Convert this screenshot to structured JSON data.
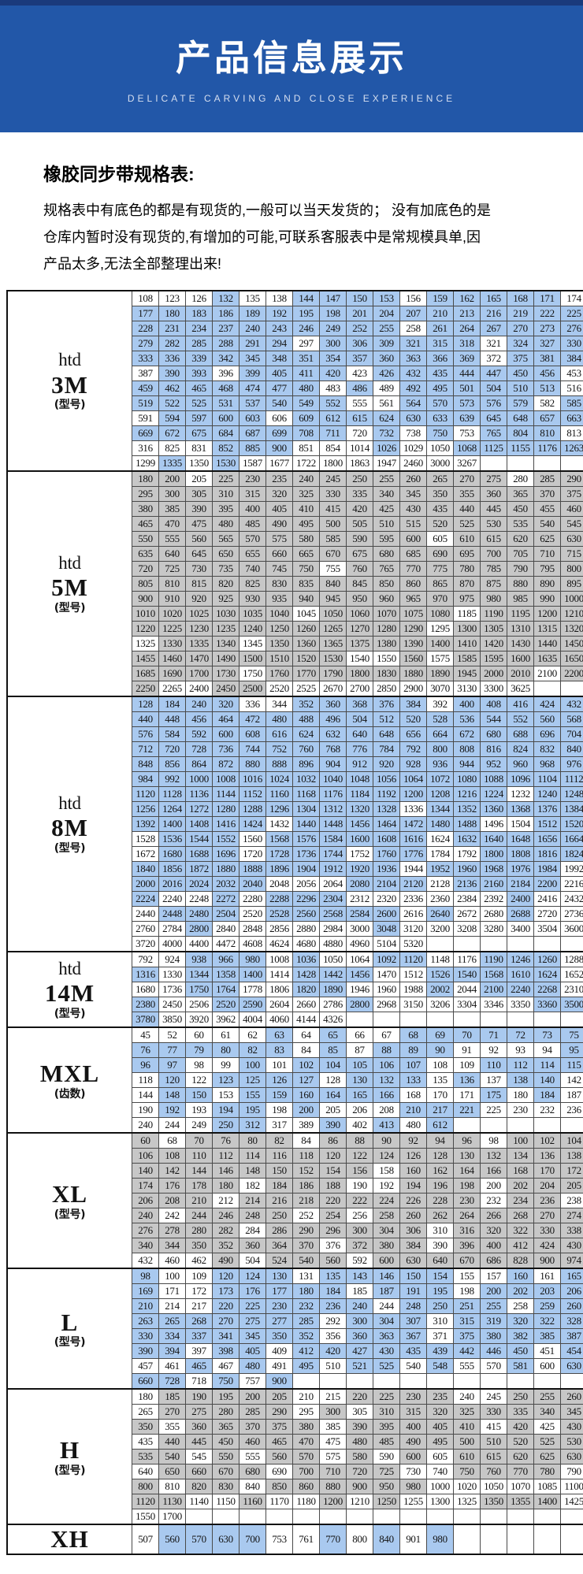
{
  "banner": {
    "title": "产品信息展示",
    "subtitle": "DELICATE CARVING AND CLOSE EXPERIENCE"
  },
  "intro": {
    "heading": "橡胶同步带规格表:",
    "lines": [
      "规格表中有底色的都是有现货的,一般可以当天发货的； 没有加底色的是",
      "仓库内暂时没有现货的,有增加的可能,可联系客服表中是常规模具单,因",
      "产品太多,无法全部整理出来!"
    ]
  },
  "colors": {
    "banner_blue": "#2257a8",
    "top_strip": "#1a3a7c",
    "highlight_blue": "#a9c9ef",
    "highlight_gray": "#c7c7c7"
  },
  "table": {
    "columns": 17,
    "sections": [
      {
        "id": "htd-3m",
        "label": [
          "htd",
          "3M",
          "(型号)"
        ],
        "hl": "highlight_blue",
        "rows": [
          "108 123 126 132* 135 138 144* 147* 150* 153* 156 159* 162* 165* 168* 171* 174",
          "177* 180* 183* 186* 189* 192* 195* 198* 201* 204* 207* 210* 213* 216* 219* 222* 225*",
          "228* 231* 234* 237* 240* 243* 246* 249* 252* 255* 258 261* 264* 267* 270* 273* 276*",
          "279* 282* 285* 288* 291* 294* 297 300* 306* 309* 321* 315* 318* 321 324* 327* 330*",
          "333* 336* 339* 342* 345* 348* 351* 354* 357* 360* 363* 366* 369* 372 375* 381* 384*",
          "387 390* 393* 396 399* 405* 411* 420* 423 426* 432* 435* 444* 447* 450* 456* 453",
          "459* 462* 465* 468* 474* 477* 480* 483 486* 489 492* 495* 501* 504* 510* 513* 516",
          "519* 522* 525* 531* 537* 540* 549* 552* 555 561 564* 570* 573* 576* 579* 582 585*",
          "591 594* 597* 600* 603* 606 609* 612* 615* 624* 630* 633* 639* 645* 648* 657* 663*",
          "669* 672* 675* 684* 687* 699* 708* 711* 720 732* 738 750* 753 765* 804* 810* 813",
          "316 825 831 852* 885* 900* 851 854 1014 1026* 1029 1050 1068* 1125* 1155* 1176* 1263*",
          "1299 1335* 1350 1530* 1587 1677 1722 1800 1863 1947 2460 3000 3267"
        ]
      },
      {
        "id": "htd-5m",
        "label": [
          "htd",
          "5M",
          "(型号)"
        ],
        "hl": "highlight_gray",
        "rows": [
          "180* 200* 205 225* 230* 235* 240* 245* 250* 255* 260* 265* 270* 275* 280 285* 290*",
          "295* 300* 305* 310* 315* 320* 325* 330* 335* 340* 345* 350* 355* 360* 365* 370* 375*",
          "380* 385* 390* 395* 400* 405* 410* 415* 420* 425* 430* 435* 440* 445* 450* 455* 460*",
          "465* 470* 475* 480* 485* 490* 495* 500* 505* 510* 515* 520* 525* 530* 535* 540* 545*",
          "550* 555* 560* 565* 570* 575* 580* 585* 590* 595* 600* 605 610* 615* 620* 625* 630*",
          "635* 640* 645* 650* 655* 660* 665* 670* 675* 680* 685* 690* 695* 700* 705* 710* 715*",
          "720* 725* 730* 735* 740* 745* 750* 755 760* 765* 770* 775* 780* 785* 790* 795* 800*",
          "805* 810* 815* 820* 825* 830* 835* 840* 845* 850* 860* 865* 870* 875* 880* 890* 895*",
          "900* 910* 920* 925* 930* 935* 940* 945* 950* 960* 965* 970* 975* 980* 985* 990* 1000*",
          "1010* 1020* 1025* 1030* 1035* 1040* 1045 1050* 1060* 1070* 1075* 1080* 1185 1190* 1195* 1200* 1210*",
          "1220* 1225* 1230* 1235* 1240* 1250* 1260* 1265* 1270* 1280* 1290* 1295 1300* 1305* 1310* 1315* 1320*",
          "1325 1330* 1335* 1340* 1345 1350* 1360* 1365* 1375* 1380* 1390* 1400* 1410* 1420* 1430* 1440* 1450*",
          "1455* 1460* 1470* 1490* 1500* 1510* 1520* 1530* 1540 1550 1560* 1575 1585* 1595* 1600* 1635* 1650*",
          "1685* 1690* 1700* 1730* 1750 1760* 1770* 1790* 1800* 1830* 1880* 1890* 1945* 2000* 2010* 2100 2200*",
          "2250* 2265 2400 2450* 2500* 2520 2525 2670 2700 2850 2900 3070 3130 3300 3625"
        ]
      },
      {
        "id": "htd-8m",
        "label": [
          "htd",
          "8M",
          "(型号)"
        ],
        "hl": "highlight_blue",
        "rows": [
          "128* 184* 240* 320* 336 344 352* 360* 368* 376* 384* 392 400* 408* 416* 424* 432*",
          "440* 448* 456* 464* 472* 480* 488* 496* 504* 512* 520* 528* 536* 544* 552* 560* 568*",
          "576* 584* 592* 600* 608* 616* 624* 632* 640* 648* 656* 664* 672* 680* 688* 696* 704*",
          "712* 720* 728* 736* 744* 752* 760* 768* 776* 784* 792* 800* 808* 816* 824* 832* 840*",
          "848* 856* 864* 872* 880* 888* 896* 904* 912* 920* 928* 936* 944* 952* 960* 968* 976*",
          "984* 992* 1000* 1008* 1016* 1024* 1032* 1040* 1048* 1056* 1064* 1072* 1080* 1088* 1096* 1104* 1112*",
          "1120* 1128* 1136* 1144* 1152* 1160* 1168* 1176* 1184* 1192* 1200* 1208* 1216* 1224* 1232 1240* 1248*",
          "1256* 1264* 1272* 1280* 1288* 1296* 1304* 1312* 1320* 1328* 1336 1344* 1352* 1360* 1368* 1376* 1384*",
          "1392* 1400* 1408* 1416* 1424* 1432 1440* 1448* 1456* 1464* 1472* 1480* 1488* 1496 1504 1512* 1520*",
          "1528 1536* 1544* 1552* 1560 1568* 1576* 1584* 1600* 1608* 1616* 1624 1632* 1640* 1648* 1656* 1664*",
          "1672 1680* 1688* 1696* 1720 1728* 1736* 1744* 1752 1760* 1776* 1784 1792 1800* 1808* 1816* 1824*",
          "1840* 1856* 1872* 1880* 1888* 1896* 1904* 1912* 1920* 1936* 1944 1952* 1960* 1968* 1976* 1984* 1992",
          "2000* 2016* 2024* 2032* 2040* 2048 2056 2064 2080* 2104* 2120* 2128 2136* 2160* 2184* 2200* 2216",
          "2224* 2240 2248 2272* 2280 2288* 2296* 2304* 2312 2320 2336 2360 2384 2392 2400* 2416 2432",
          "2440 2448* 2480* 2504* 2520 2528* 2560* 2568* 2584* 2600* 2616 2640* 2672 2680 2688* 2720 2736",
          "2760 2784 2800* 2840 2848 2856 2880 2984 3000 3048* 3120 3200 3208 3280 3400 3504 3600",
          "3720 4000 4400 4472 4608 4624 4680 4880 4960 5104 5320"
        ]
      },
      {
        "id": "htd-14m",
        "label": [
          "htd",
          "14M",
          "(型号)"
        ],
        "hl": "highlight_blue",
        "rows": [
          "792 924 938* 966* 980* 1008 1036* 1050 1064 1092* 1120* 1148 1176 1190* 1246* 1260* 1288",
          "1316* 1330 1344* 1358* 1400* 1414 1428* 1442* 1456* 1470 1512 1526* 1540* 1568* 1610* 1624* 1652",
          "1680 1736 1750* 1764* 1778 1806 1820* 1890* 1946 1960 1988 2002* 2044 2100* 2240* 2268* 2310",
          "2380* 2450 2506 2520* 2590* 2604 2660 2786 2800* 2968 3150 3206 3304 3346 3350 3360* 3500*",
          "3780* 3850 3920 3962 4004 4060 4144 4326"
        ]
      },
      {
        "id": "mxl",
        "label": [
          "MXL",
          "(齿数)"
        ],
        "hl": "highlight_blue",
        "rows": [
          "45 52 60 61 62 63* 64 65* 66 67 68* 69* 70* 71* 72* 73* 75*",
          "76* 77* 79* 80* 82* 83* 84 85* 87 88* 89* 90* 91 92 93 94 95*",
          "96* 97* 98 99 100* 101 102* 104* 105* 106* 107* 108 109 110* 112* 114* 115*",
          "118 120* 122 123* 125* 126* 127* 128 130* 132* 133* 135 136* 137 138* 140* 142",
          "144 148* 150* 153 155* 159* 160* 164* 165* 166* 168 170 171 175* 180 184* 187",
          "190 192* 193 194* 195* 198 200* 205 206 208 210* 217* 221* 225 230 232 236",
          "240 244 249 250* 312* 317 389 390* 402 413* 480 612*"
        ]
      },
      {
        "id": "xl",
        "label": [
          "XL",
          "(型号)"
        ],
        "hl": "highlight_gray",
        "rows": [
          "60* 68 70* 76* 80* 82* 84 86* 88* 90* 92* 94* 96* 98 100* 102* 104*",
          "106* 108* 110* 112* 114* 116* 118* 120* 122* 124* 126* 128* 130* 132* 134* 136* 138*",
          "140* 142* 144* 146* 148* 150* 152* 154* 156* 158 160* 162* 164* 166* 168* 170* 172*",
          "174* 176* 178* 180* 182 184* 186* 188* 190 192 194* 196* 198* 200 202* 204* 205*",
          "206* 208* 210* 212 214* 216* 218* 220* 222* 224* 226* 228* 230* 232 234* 236* 238",
          "240* 242 244* 246* 248* 250* 252 254* 256 258* 260* 262* 264* 266* 268* 270* 274*",
          "276* 278* 280* 282* 284 286* 290* 296* 300* 304* 306* 310 316* 320* 322* 330* 338*",
          "340* 344* 350* 352* 360* 364* 370* 376 372* 380* 384* 390 396* 400* 412* 424* 430*",
          "432 460 462 490* 504 524* 540* 560* 592 600* 630* 640* 670* 686* 828* 900* 974*"
        ]
      },
      {
        "id": "l",
        "label": [
          "L",
          "(型号)"
        ],
        "hl": "highlight_blue",
        "rows": [
          "98* 100 109 120* 124* 130* 131 135* 143* 146* 150* 154* 155 157 160* 161 165*",
          "169* 171 172 173* 176* 177* 180* 184* 185 187* 191* 195* 198 200* 202* 203* 206*",
          "210* 214 217 220* 225* 230* 232* 236* 240* 244 248* 250* 251* 255* 258 259* 260*",
          "263* 265* 268* 270* 275* 277* 285* 292 300* 304* 307* 310 315* 319* 320* 322* 328*",
          "330* 334* 337* 341* 345* 350* 352* 356 360* 363* 367* 371 375* 380* 382* 385* 387*",
          "390* 394* 397 398* 405* 409 412* 420* 427* 430* 435* 439* 442* 446* 450* 451 454*",
          "457 461 465* 467 480* 491 495* 510 521* 525* 540 548* 555 570 581* 600 630*",
          "660* 728* 718 750* 757 900*"
        ]
      },
      {
        "id": "h",
        "label": [
          "H",
          "(型号)"
        ],
        "hl": "highlight_gray",
        "rows": [
          "180 185* 190* 195* 200* 205* 210 215 220* 225* 230* 235* 240 245 250* 255* 260*",
          "265 270* 275* 280* 285* 290* 295 300* 305 310* 315* 320* 325* 330* 335* 340* 345*",
          "350* 355 360* 365* 370* 375* 380* 385 390* 395* 400* 405* 410* 415 420* 425 430*",
          "435 440* 445* 450* 460* 465* 470* 475 480* 485* 490* 495* 500* 510* 520* 525* 530*",
          "535* 540* 545 550* 555 560* 570* 575 580* 590 600* 605 610* 615* 620* 625* 630*",
          "640 650* 660* 670* 680* 690 700* 710* 720* 725* 730 740 750* 760* 770* 780* 790",
          "800* 810 820* 830* 840 850* 860* 880* 900* 950* 980* 1000 1020 1050 1070 1085 1100",
          "1120* 1130* 1140 1150 1160* 1170 1180 1200* 1210 1250* 1255 1300 1325 1350* 1355* 1400* 1425",
          "1550 1700"
        ]
      },
      {
        "id": "xh",
        "label": [
          "XH"
        ],
        "hl": "highlight_blue",
        "tall": true,
        "rows": [
          "507 560* 570* 630* 700* 753 761 770* 800 840* 901 980*"
        ]
      }
    ]
  }
}
